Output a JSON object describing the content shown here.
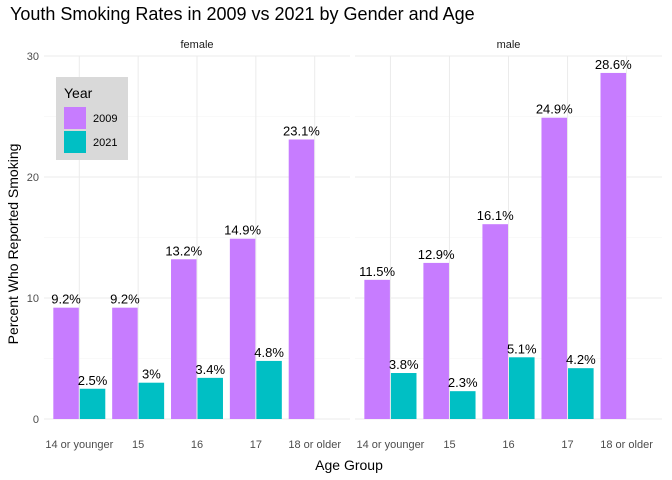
{
  "chart_data": {
    "type": "bar",
    "title": "Youth Smoking Rates in 2009 vs 2021 by Gender and Age",
    "xlabel": "Age Group",
    "ylabel": "Percent Who Reported Smoking",
    "ylim": [
      0,
      30
    ],
    "yticks": [
      0,
      10,
      20,
      30
    ],
    "grid": true,
    "categories": [
      "14 or younger",
      "15",
      "16",
      "17",
      "18 or older"
    ],
    "legend": {
      "title": "Year",
      "placement": "top-left",
      "entries": [
        {
          "name": "2009",
          "color": "#C77CFF"
        },
        {
          "name": "2021",
          "color": "#00BFC4"
        }
      ]
    },
    "facets": [
      {
        "name": "female",
        "series": [
          {
            "name": "2009",
            "color": "#C77CFF",
            "values": [
              9.2,
              9.2,
              13.2,
              14.9,
              23.1
            ],
            "labels": [
              "9.2%",
              "9.2%",
              "13.2%",
              "14.9%",
              "23.1%"
            ]
          },
          {
            "name": "2021",
            "color": "#00BFC4",
            "values": [
              2.5,
              3.0,
              3.4,
              4.8,
              null
            ],
            "labels": [
              "2.5%",
              "3%",
              "3.4%",
              "4.8%",
              null
            ]
          }
        ]
      },
      {
        "name": "male",
        "series": [
          {
            "name": "2009",
            "color": "#C77CFF",
            "values": [
              11.5,
              12.9,
              16.1,
              24.9,
              28.6
            ],
            "labels": [
              "11.5%",
              "12.9%",
              "16.1%",
              "24.9%",
              "28.6%"
            ]
          },
          {
            "name": "2021",
            "color": "#00BFC4",
            "values": [
              3.8,
              2.3,
              5.1,
              4.2,
              null
            ],
            "labels": [
              "3.8%",
              "2.3%",
              "5.1%",
              "4.2%",
              null
            ]
          }
        ]
      }
    ]
  }
}
